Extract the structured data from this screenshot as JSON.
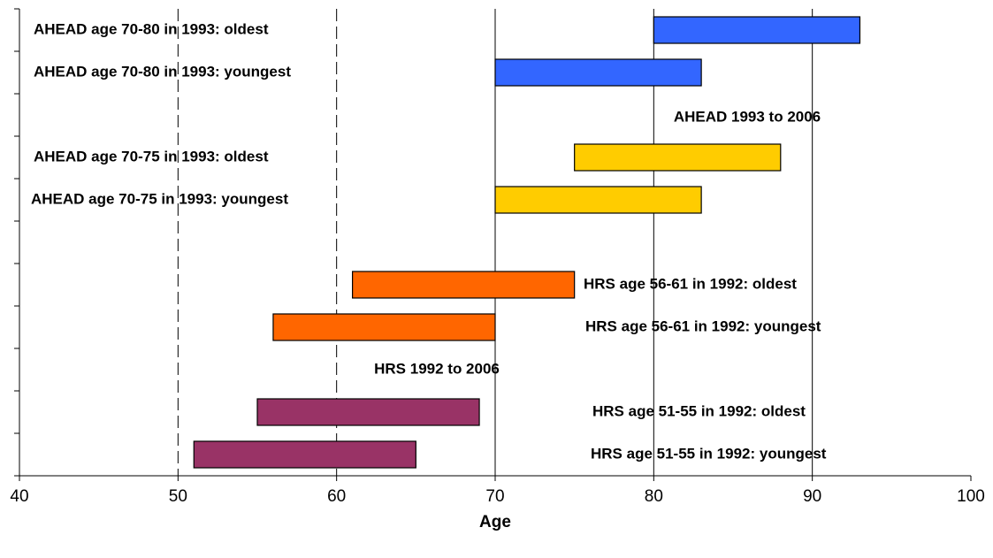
{
  "chart_data": {
    "type": "floating-bar",
    "x_label": "Age",
    "categories": [
      "AHEAD age 70-80 in 1993: oldest",
      "AHEAD age 70-80 in 1993: youngest",
      null,
      "AHEAD age 70-75 in 1993: oldest",
      "AHEAD age 70-75 in 1993: youngest",
      null,
      "HRS age 56-61 in 1992: oldest",
      "HRS age 56-61 in 1992: youngest",
      null,
      "HRS age 51-55 in 1992: oldest",
      "HRS age 51-55 in 1992: youngest"
    ],
    "starts": [
      80,
      70,
      null,
      75,
      70,
      null,
      61,
      56,
      null,
      55,
      51
    ],
    "ends": [
      93,
      83,
      null,
      88,
      83,
      null,
      75,
      70,
      null,
      69,
      65
    ],
    "colors": [
      "#3366ff",
      "#3366ff",
      null,
      "#ffcc00",
      "#ffcc00",
      null,
      "#ff6600",
      "#ff6600",
      null,
      "#993366",
      "#993366"
    ],
    "annotations": [
      "AHEAD 1993 to 2006",
      "HRS 1992 to 2006"
    ],
    "xlim": [
      40,
      100
    ],
    "xticks": [
      40,
      50,
      60,
      70,
      80,
      90,
      100
    ],
    "grid": true
  }
}
